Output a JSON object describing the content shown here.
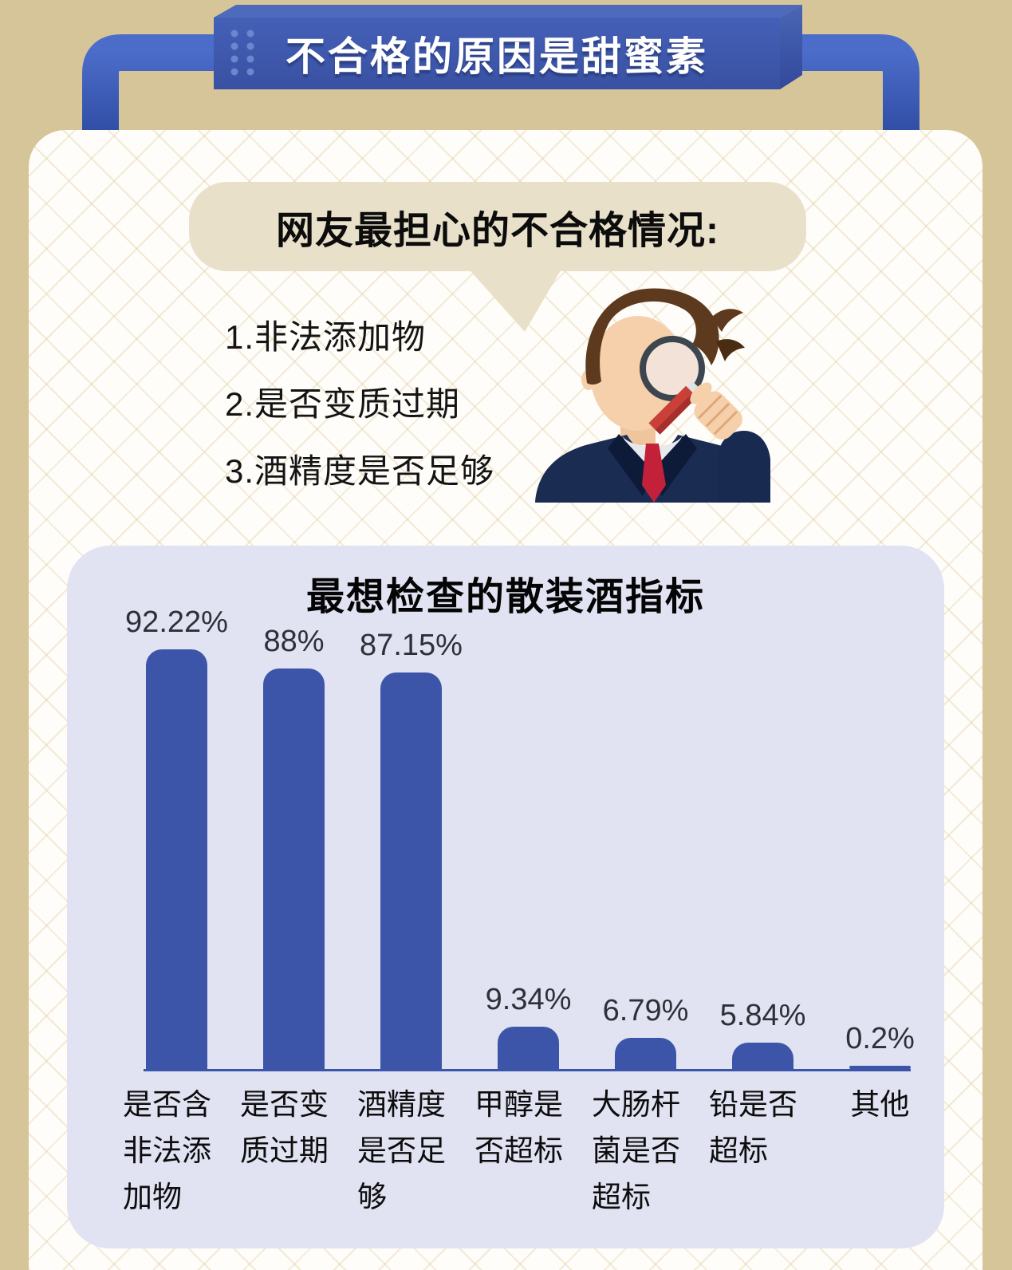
{
  "header_banner": {
    "title": "不合格的原因是甜蜜素"
  },
  "speech_bubble": {
    "text": "网友最担心的不合格情况:"
  },
  "concerns": {
    "items": [
      "1.非法添加物",
      "2.是否变质过期",
      "3.酒精度是否足够"
    ]
  },
  "illustration": {
    "name": "inspector-with-magnifier"
  },
  "chart_data": {
    "type": "bar",
    "title": "最想检查的散装酒指标",
    "categories": [
      "是否含非法添加物",
      "是否变质过期",
      "酒精度是否足够",
      "甲醇是否超标",
      "大肠杆菌是否超标",
      "铅是否超标",
      "其他"
    ],
    "category_lines": [
      [
        "是否含",
        "非法添",
        "加物"
      ],
      [
        "是否变",
        "质过期"
      ],
      [
        "酒精度",
        "是否足",
        "够"
      ],
      [
        "甲醇是",
        "否超标"
      ],
      [
        "大肠杆",
        "菌是否",
        "超标"
      ],
      [
        "铅是否",
        "超标"
      ],
      [
        "其他"
      ]
    ],
    "values": [
      92.22,
      88,
      87.15,
      9.34,
      6.79,
      5.84,
      0.2
    ],
    "value_labels": [
      "92.22%",
      "88%",
      "87.15%",
      "9.34%",
      "6.79%",
      "5.84%",
      "0.2%"
    ],
    "ylim": [
      0,
      100
    ],
    "grid": false,
    "legend": "none",
    "bar_color": "#3c55a8",
    "axis_color": "#3b55a8"
  },
  "colors": {
    "background_tan": "#d7c59a",
    "banner_blue_front": "#3e58ac",
    "banner_blue_top": "#4e6aba",
    "handle_blue": "#3a5ab5",
    "card_white": "#fffdf9",
    "bubble_beige": "#e9e0c9",
    "panel_lavender": "#e0e3f0",
    "bar_blue": "#3c55a8",
    "tie_red": "#c3203a",
    "text_black": "#0c0c0c"
  }
}
